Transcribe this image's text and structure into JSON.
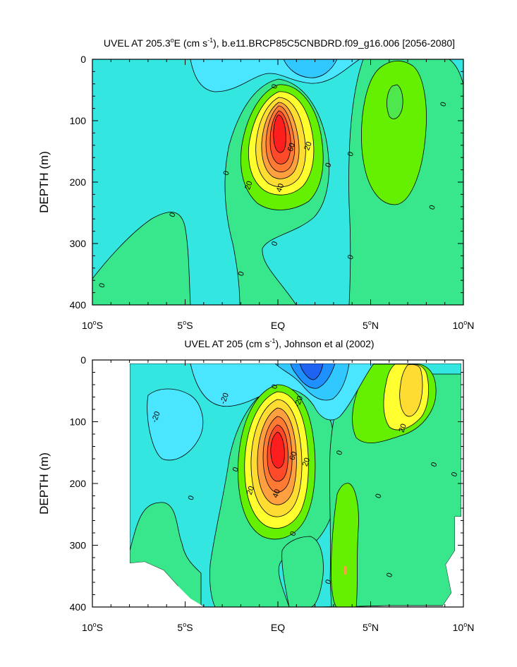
{
  "colors": {
    "cyan": "#34e6e0",
    "sky": "#4ae6ff",
    "ltblue": "#31c8ff",
    "blue": "#1e90ff",
    "dkblue": "#1e64f0",
    "ltgreen": "#38e68c",
    "green": "#4ee84e",
    "lime": "#64f000",
    "yellow": "#ffff30",
    "gold": "#ffdc32",
    "orange": "#ffa040",
    "dkorange": "#ff7a32",
    "red": "#ff4a2a",
    "dkred": "#ff1e1e"
  },
  "chart_data": [
    {
      "type": "contour",
      "title": "UVEL AT 205.3°E (cm s⁻¹), b.e11.BRCP85C5CNBDRD.f09_g16.006 [2056-2080]",
      "title_parts": {
        "a": "UVEL AT 205.3",
        "deg": "o",
        "b": "E (cm s",
        "sup": "-1",
        "c": "), b.e11.BRCP85C5CNBDRD.f09_g16.006 [2056-2080]"
      },
      "xlabel": "",
      "ylabel": "DEPTH (m)",
      "xlim": [
        -10,
        10
      ],
      "ylim": [
        0,
        400
      ],
      "y_reversed": true,
      "x_ticks": [
        {
          "value": -10,
          "num": "10",
          "deg": "o",
          "hem": "S"
        },
        {
          "value": -5,
          "num": "5",
          "deg": "o",
          "hem": "S"
        },
        {
          "value": 0,
          "num": "EQ",
          "deg": "",
          "hem": ""
        },
        {
          "value": 5,
          "num": "5",
          "deg": "o",
          "hem": "N"
        },
        {
          "value": 10,
          "num": "10",
          "deg": "o",
          "hem": "N"
        }
      ],
      "y_ticks": [
        {
          "value": 0,
          "label": "0"
        },
        {
          "value": 100,
          "label": "100"
        },
        {
          "value": 200,
          "label": "200"
        },
        {
          "value": 300,
          "label": "300"
        },
        {
          "value": 400,
          "label": "400"
        }
      ],
      "contour_interval": 10,
      "contour_labels": [
        {
          "text": "0",
          "lon": -9.5,
          "depth": 368
        },
        {
          "text": "0",
          "lon": -5.7,
          "depth": 253
        },
        {
          "text": "0",
          "lon": -2.8,
          "depth": 185
        },
        {
          "text": "0",
          "lon": -2.0,
          "depth": 349
        },
        {
          "text": "20",
          "lon": -1.6,
          "depth": 205
        },
        {
          "text": "0",
          "lon": -0.2,
          "depth": 44
        },
        {
          "text": "0",
          "lon": -0.2,
          "depth": 300
        },
        {
          "text": "60",
          "lon": 0.7,
          "depth": 143
        },
        {
          "text": "40",
          "lon": 0.1,
          "depth": 209
        },
        {
          "text": "20",
          "lon": 1.6,
          "depth": 141
        },
        {
          "text": "0",
          "lon": 2.7,
          "depth": 172
        },
        {
          "text": "0",
          "lon": 3.9,
          "depth": 154
        },
        {
          "text": "0",
          "lon": 3.9,
          "depth": 322
        },
        {
          "text": "0",
          "lon": 8.3,
          "depth": 241
        },
        {
          "text": "0",
          "lon": 8.9,
          "depth": 73
        }
      ],
      "features": [
        {
          "name": "Equatorial Undercurrent core",
          "lon": 0.0,
          "depth": 130,
          "max_value": 90
        },
        {
          "name": "Eastward maximum north of equator",
          "lon": 6.0,
          "depth": 65,
          "max_value": 18
        },
        {
          "name": "Westward surface flow",
          "lon": 1.5,
          "depth": 10,
          "min_value": -12
        }
      ]
    },
    {
      "type": "contour",
      "title": "UVEL AT 205 (cm s⁻¹), Johnson et al (2002)",
      "title_parts": {
        "a": "UVEL AT 205 (cm s",
        "sup": "-1",
        "b": "), Johnson et al (2002)"
      },
      "xlabel": "",
      "ylabel": "DEPTH (m)",
      "xlim": [
        -10,
        10
      ],
      "ylim": [
        0,
        400
      ],
      "y_reversed": true,
      "data_lon_range": [
        -8,
        9.8
      ],
      "contour_interval": 10,
      "contour_labels": [
        {
          "text": "-20",
          "lon": -6.6,
          "depth": 92
        },
        {
          "text": "-20",
          "lon": -2.9,
          "depth": 62
        },
        {
          "text": "-20",
          "lon": 1.1,
          "depth": 67
        },
        {
          "text": "0",
          "lon": -0.2,
          "depth": 43
        },
        {
          "text": "0",
          "lon": -2.3,
          "depth": 177
        },
        {
          "text": "0",
          "lon": -4.7,
          "depth": 223
        },
        {
          "text": "0",
          "lon": 0.8,
          "depth": 281
        },
        {
          "text": "0",
          "lon": 3.3,
          "depth": 150
        },
        {
          "text": "0",
          "lon": 2.7,
          "depth": 359
        },
        {
          "text": "0",
          "lon": 5.4,
          "depth": 220
        },
        {
          "text": "0",
          "lon": 6.0,
          "depth": 348
        },
        {
          "text": "0",
          "lon": 8.4,
          "depth": 169
        },
        {
          "text": "0",
          "lon": 9.5,
          "depth": 185
        },
        {
          "text": "20",
          "lon": -1.5,
          "depth": 211
        },
        {
          "text": "60",
          "lon": 0.8,
          "depth": 155
        },
        {
          "text": "40",
          "lon": -0.1,
          "depth": 216
        },
        {
          "text": "20",
          "lon": 1.5,
          "depth": 165
        },
        {
          "text": "20",
          "lon": 6.7,
          "depth": 110
        }
      ],
      "features": [
        {
          "name": "Equatorial Undercurrent core",
          "lon": 0.0,
          "depth": 130,
          "max_value": 90
        },
        {
          "name": "Westward surface jet",
          "lon": 1.8,
          "depth": 20,
          "min_value": -50
        },
        {
          "name": "Eastward maximum north of equator",
          "lon": 6.8,
          "depth": 50,
          "max_value": 40
        }
      ]
    }
  ]
}
